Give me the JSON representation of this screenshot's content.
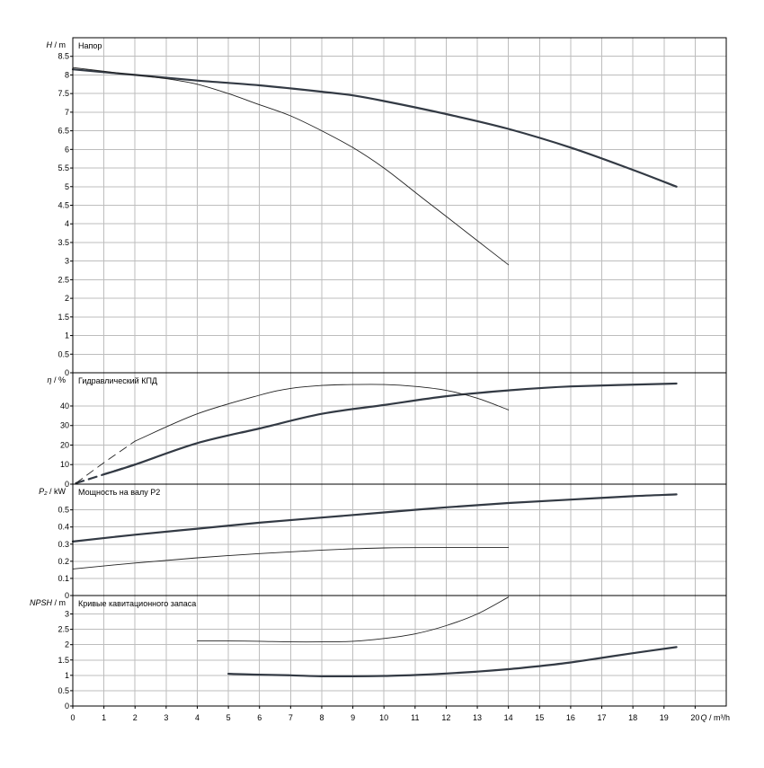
{
  "chart_data": {
    "type": "line",
    "x_axis": {
      "label": "Q / m³/h",
      "range": [
        0,
        21
      ],
      "ticks": [
        0,
        1,
        2,
        3,
        4,
        5,
        6,
        7,
        8,
        9,
        10,
        11,
        12,
        13,
        14,
        15,
        16,
        17,
        18,
        19,
        20
      ]
    },
    "grid": true,
    "panels": [
      {
        "id": "head",
        "title": "Напор",
        "ylabel_sym": "H",
        "ylabel_unit": " / m",
        "ylim": [
          0,
          9.0
        ],
        "yticks": [
          0,
          0.5,
          1,
          1.5,
          2,
          2.5,
          3,
          3.5,
          4,
          4.5,
          5,
          5.5,
          6,
          6.5,
          7,
          7.5,
          8,
          8.5
        ],
        "series": [
          {
            "style": "thick",
            "x": [
              0,
              2,
              4,
              6,
              8,
              9,
              10,
              12,
              14,
              16,
              18,
              19.4
            ],
            "y": [
              8.15,
              8.0,
              7.85,
              7.72,
              7.55,
              7.45,
              7.3,
              6.95,
              6.55,
              6.05,
              5.45,
              5.0
            ]
          },
          {
            "style": "thin",
            "x": [
              0,
              2,
              3,
              4,
              5,
              6,
              7,
              8,
              9,
              10,
              11,
              12,
              13,
              14
            ],
            "y": [
              8.2,
              8.0,
              7.9,
              7.75,
              7.5,
              7.2,
              6.9,
              6.5,
              6.05,
              5.5,
              4.85,
              4.2,
              3.55,
              2.9
            ]
          }
        ]
      },
      {
        "id": "efficiency",
        "title": "Гидравлический КПД",
        "ylabel_sym": "η",
        "ylabel_unit": " / %",
        "ylim": [
          0,
          57
        ],
        "yticks": [
          0,
          10,
          20,
          30,
          40
        ],
        "series": [
          {
            "style": "thick",
            "x": [
              1,
              2,
              4,
              6,
              8,
              10,
              12,
              14,
              16,
              19.4
            ],
            "y": [
              5,
              10,
              21,
              28.5,
              36,
              40.5,
              45,
              48,
              50,
              51.5
            ]
          },
          {
            "style": "thin",
            "x": [
              2,
              4,
              6,
              7,
              8,
              9,
              10,
              11,
              12,
              13,
              14
            ],
            "y": [
              22,
              36,
              45.5,
              49,
              50.5,
              51,
              51,
              50,
              48,
              44,
              38
            ]
          },
          {
            "style": "dashed_thick",
            "x": [
              0.1,
              1,
              2
            ],
            "y": [
              0.5,
              5,
              10
            ]
          },
          {
            "style": "dashed_thin",
            "x": [
              0.1,
              1,
              2
            ],
            "y": [
              0.5,
              11,
              22
            ]
          }
        ]
      },
      {
        "id": "power",
        "title": "Мощность на валу P2",
        "ylabel_sym": "P₂",
        "ylabel_unit": " / kW",
        "ylim": [
          0,
          0.65
        ],
        "yticks": [
          0,
          0.1,
          0.2,
          0.3,
          0.4,
          0.5
        ],
        "series": [
          {
            "style": "thick",
            "x": [
              0,
              2,
              4,
              6,
              8,
              10,
              12,
              14,
              16,
              18,
              19.4
            ],
            "y": [
              0.315,
              0.355,
              0.39,
              0.425,
              0.455,
              0.485,
              0.515,
              0.54,
              0.56,
              0.58,
              0.59
            ]
          },
          {
            "style": "thin",
            "x": [
              0,
              2,
              4,
              6,
              8,
              10,
              12,
              14
            ],
            "y": [
              0.155,
              0.19,
              0.22,
              0.245,
              0.265,
              0.278,
              0.28,
              0.28
            ]
          }
        ]
      },
      {
        "id": "npsh",
        "title": "Кривые кавитационного запаса",
        "ylabel_sym": "NPSH",
        "ylabel_unit": " / m",
        "ylim": [
          0,
          3.6
        ],
        "yticks": [
          0,
          0.5,
          1,
          1.5,
          2,
          2.5,
          3
        ],
        "series": [
          {
            "style": "thick",
            "x": [
              5,
              6,
              7,
              8,
              9,
              10,
              11,
              12,
              13,
              14,
              15,
              16,
              17,
              18,
              19.4
            ],
            "y": [
              1.05,
              1.02,
              1.0,
              0.97,
              0.97,
              0.98,
              1.01,
              1.06,
              1.12,
              1.2,
              1.3,
              1.42,
              1.57,
              1.72,
              1.92
            ]
          },
          {
            "style": "thin",
            "x": [
              4,
              5,
              6,
              7,
              8,
              9,
              10,
              11,
              12,
              13,
              14
            ],
            "y": [
              2.12,
              2.12,
              2.11,
              2.09,
              2.09,
              2.11,
              2.2,
              2.35,
              2.62,
              3.0,
              3.55
            ]
          }
        ]
      }
    ]
  }
}
